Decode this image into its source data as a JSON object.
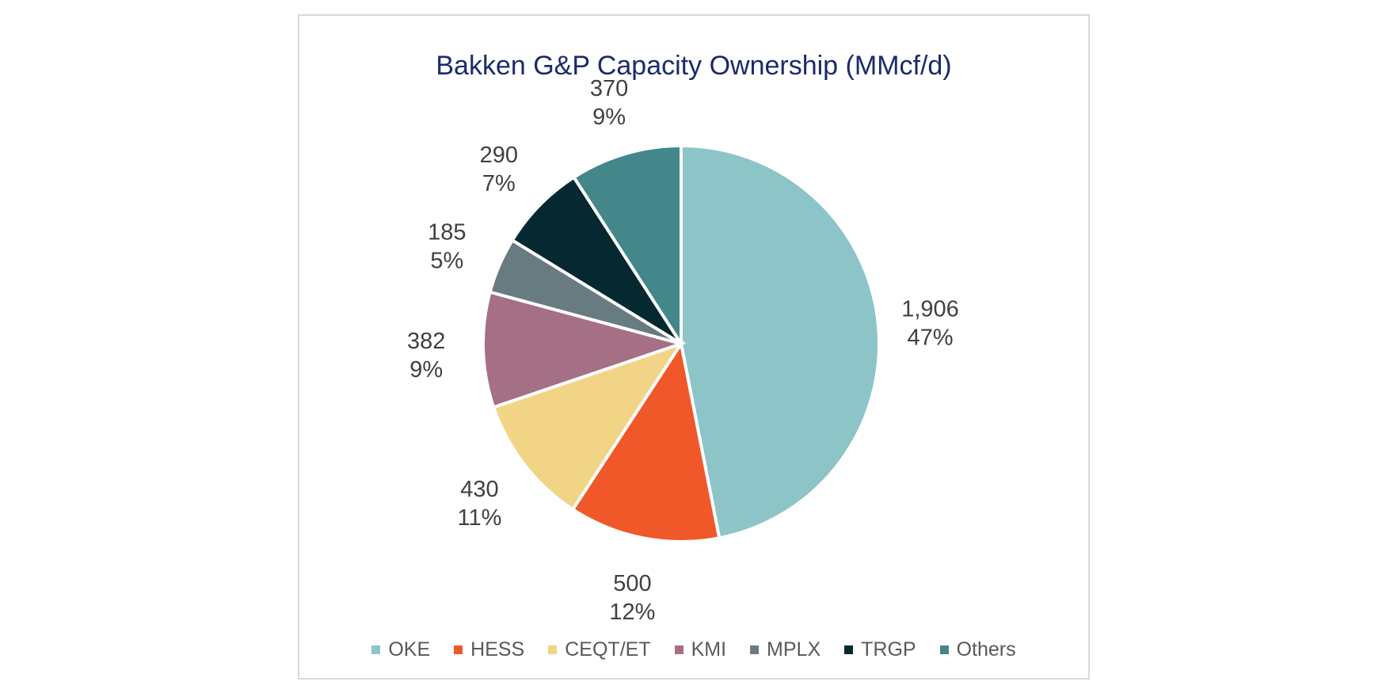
{
  "chart_data": {
    "type": "pie",
    "title": "Bakken G&P Capacity Ownership (MMcf/d)",
    "categories": [
      "OKE",
      "HESS",
      "CEQT/ET",
      "KMI",
      "MPLX",
      "TRGP",
      "Others"
    ],
    "values": [
      1906,
      500,
      430,
      382,
      185,
      290,
      370
    ],
    "value_labels": [
      "1,906",
      "500",
      "430",
      "382",
      "185",
      "290",
      "370"
    ],
    "percent_labels": [
      "47%",
      "12%",
      "11%",
      "9%",
      "5%",
      "7%",
      "9%"
    ],
    "colors": [
      "#8dc4c7",
      "#f0582a",
      "#f2d486",
      "#a56f86",
      "#687b80",
      "#062830",
      "#43878a"
    ],
    "legend_position": "bottom",
    "start_angle": "12 o'clock, clockwise"
  }
}
